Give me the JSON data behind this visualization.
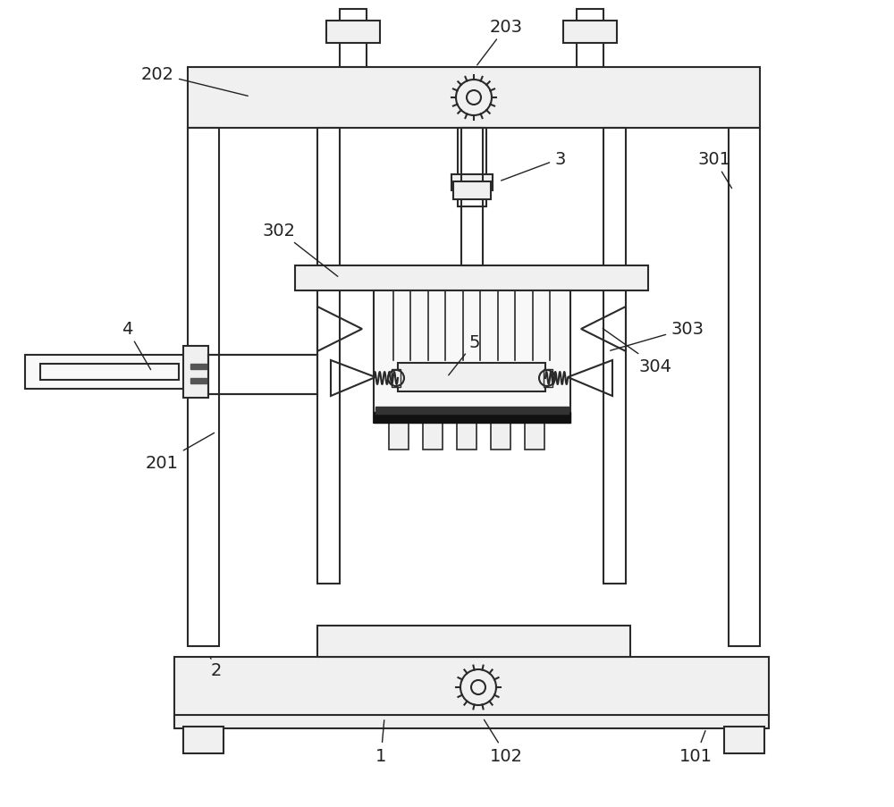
{
  "bg_color": "#ffffff",
  "line_color": "#2a2a2a",
  "dark_color": "#111111",
  "figsize": [
    10.0,
    9.04
  ],
  "dpi": 100
}
